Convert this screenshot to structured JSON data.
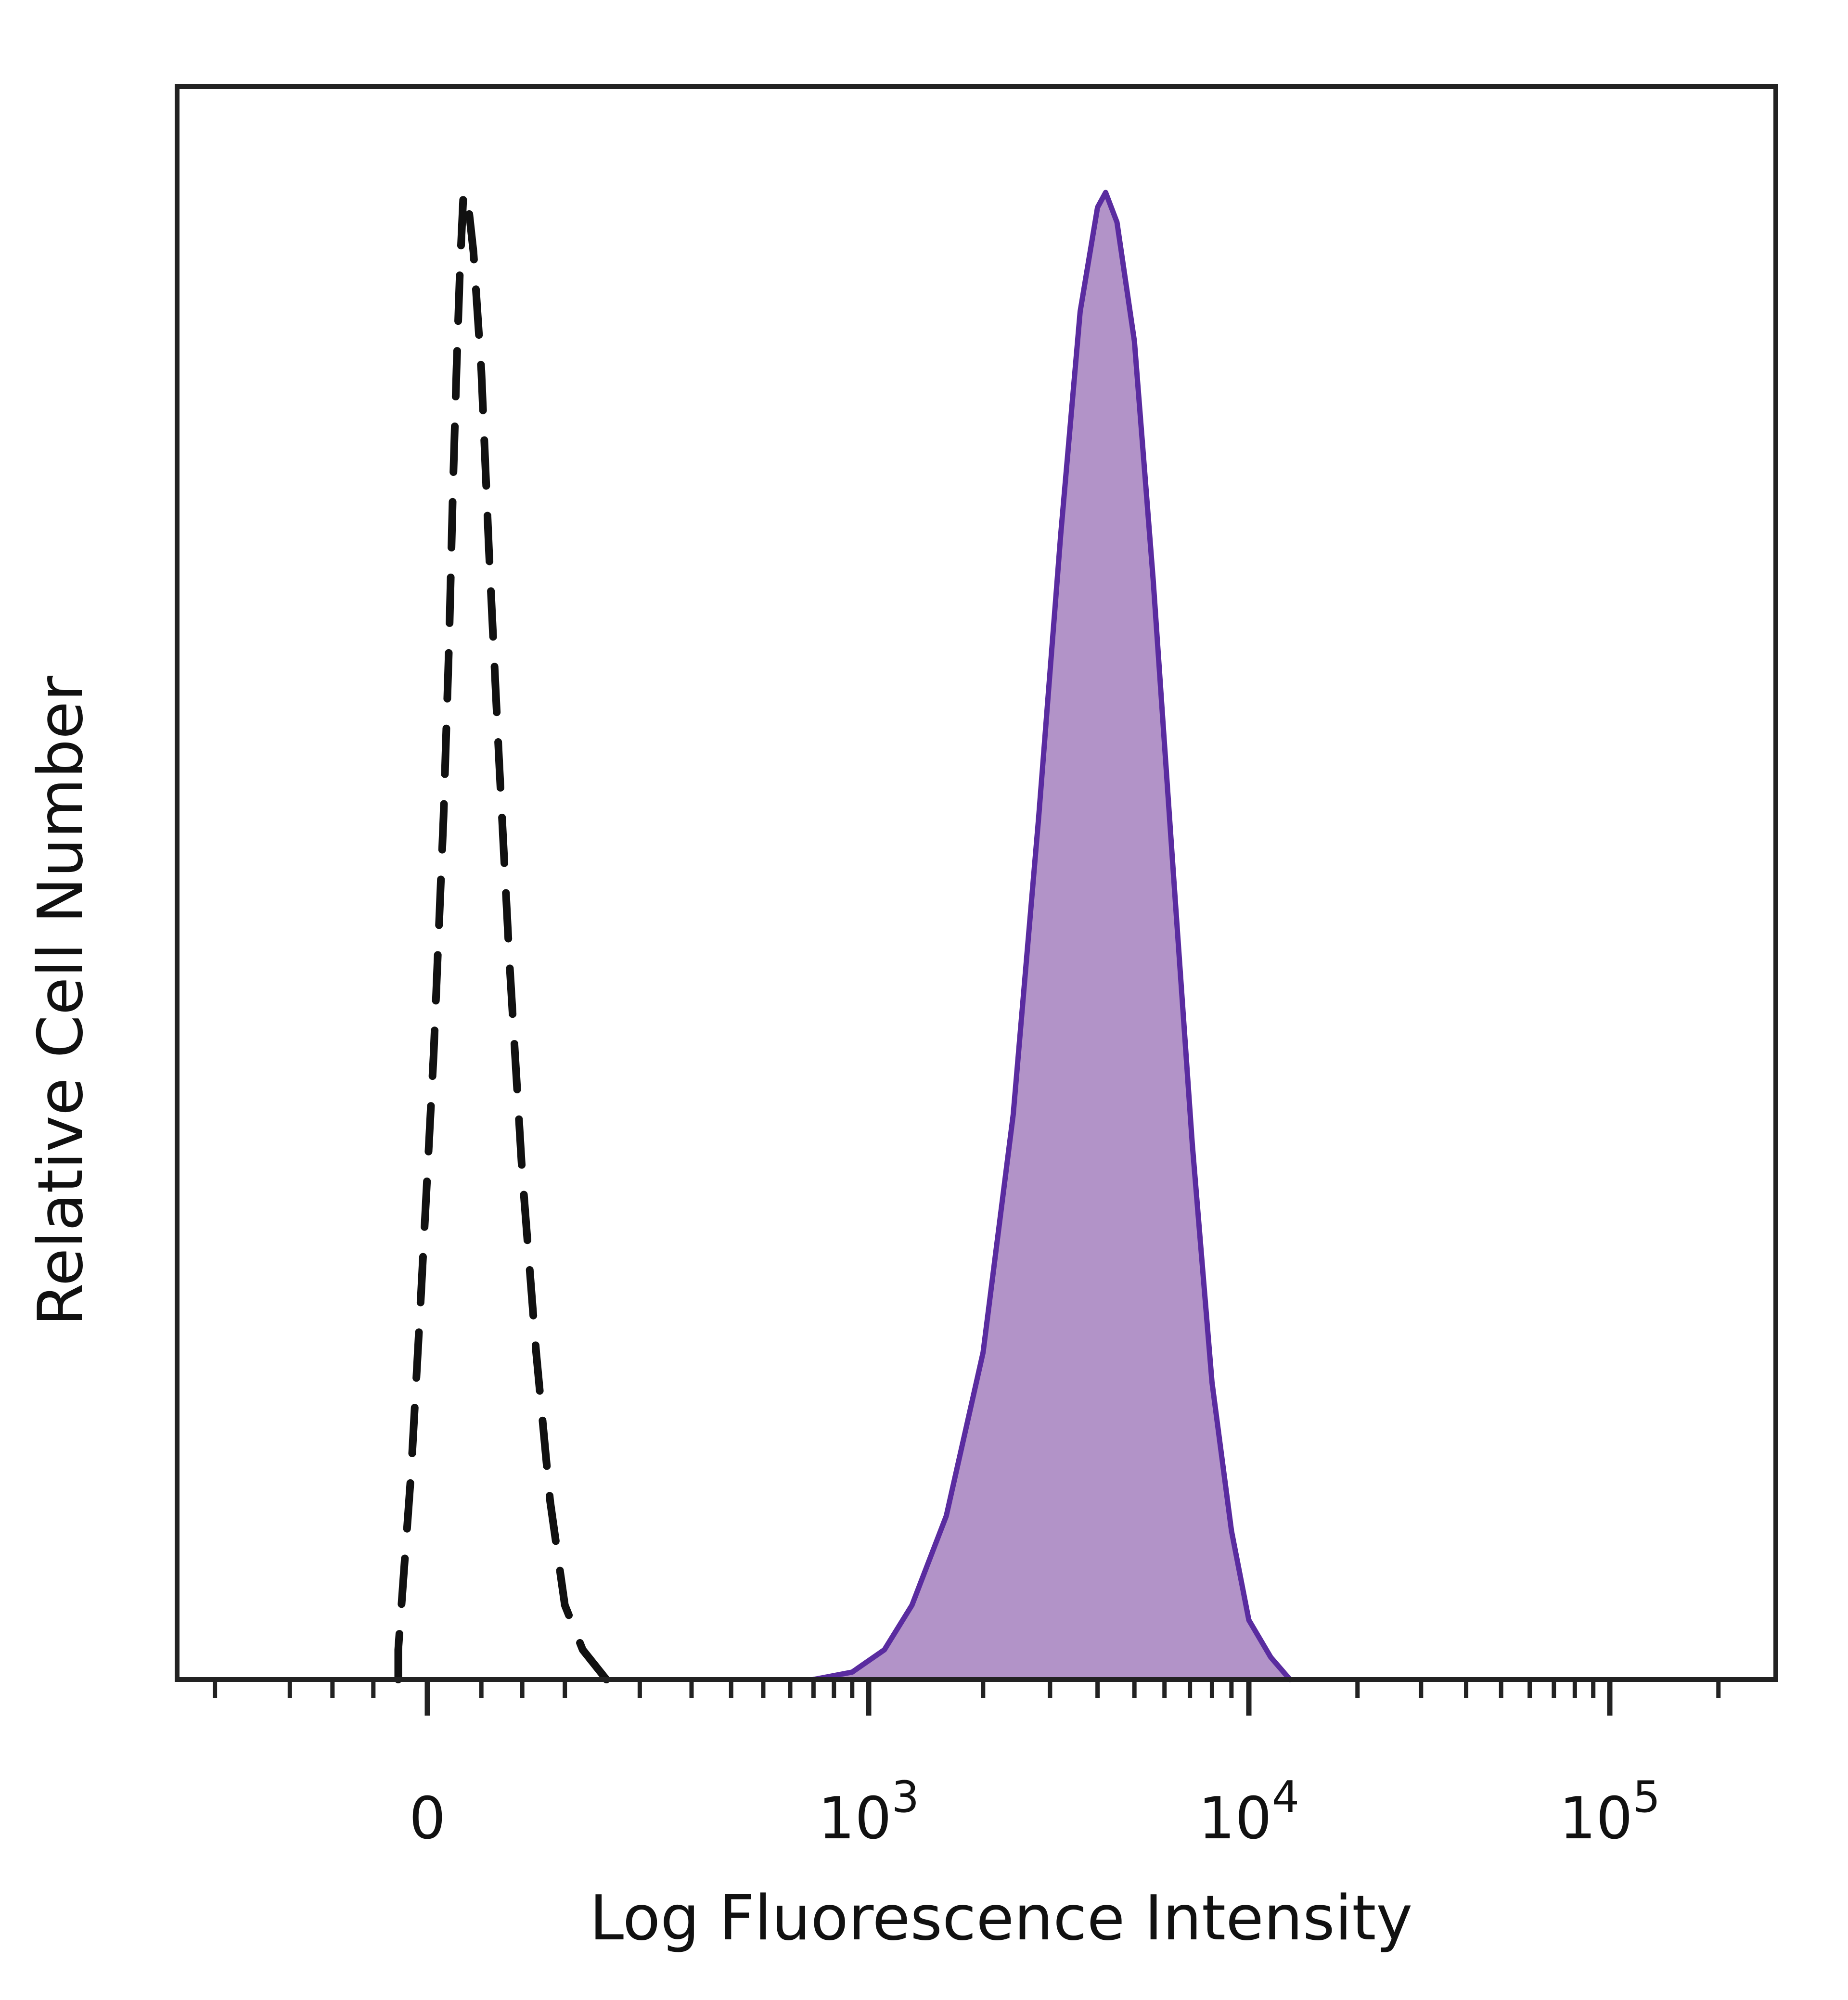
{
  "chart_data": {
    "type": "area",
    "xlabel": "Log Fluorescence Intensity",
    "ylabel": "Relative Cell Number",
    "x_scale": "biexponential",
    "x_ticks": [
      {
        "value": 0,
        "base": "0",
        "exp": ""
      },
      {
        "value": 1000,
        "base": "10",
        "exp": "3"
      },
      {
        "value": 10000,
        "base": "10",
        "exp": "4"
      },
      {
        "value": 100000,
        "base": "10",
        "exp": "5"
      }
    ],
    "grid": false,
    "legend": "none",
    "series": [
      {
        "style": "dashed",
        "color": "#111111",
        "fill": "none",
        "points": [
          [
            -15,
            2
          ],
          [
            -8,
            14
          ],
          [
            -3,
            26
          ],
          [
            3,
            42
          ],
          [
            8,
            58
          ],
          [
            11,
            70
          ],
          [
            13,
            80
          ],
          [
            15,
            88
          ],
          [
            17,
            95
          ],
          [
            19,
            100
          ],
          [
            22,
            99
          ],
          [
            25,
            96
          ],
          [
            30,
            88
          ],
          [
            35,
            76
          ],
          [
            42,
            62
          ],
          [
            50,
            48
          ],
          [
            60,
            34
          ],
          [
            72,
            22
          ],
          [
            85,
            12
          ],
          [
            100,
            5
          ],
          [
            120,
            2
          ],
          [
            150,
            0
          ]
        ]
      },
      {
        "style": "solid",
        "color": "#5a2ca0",
        "fill": "#b293c8",
        "points": [
          [
            700,
            0
          ],
          [
            900,
            0.5
          ],
          [
            1100,
            2
          ],
          [
            1300,
            5
          ],
          [
            1600,
            11
          ],
          [
            2000,
            22
          ],
          [
            2400,
            38
          ],
          [
            2800,
            58
          ],
          [
            3200,
            77
          ],
          [
            3600,
            92
          ],
          [
            4000,
            99
          ],
          [
            4200,
            100
          ],
          [
            4500,
            98
          ],
          [
            5000,
            90
          ],
          [
            5600,
            74
          ],
          [
            6300,
            55
          ],
          [
            7100,
            36
          ],
          [
            8000,
            20
          ],
          [
            9000,
            10
          ],
          [
            10000,
            4
          ],
          [
            11500,
            1.5
          ],
          [
            13000,
            0
          ]
        ]
      }
    ]
  }
}
